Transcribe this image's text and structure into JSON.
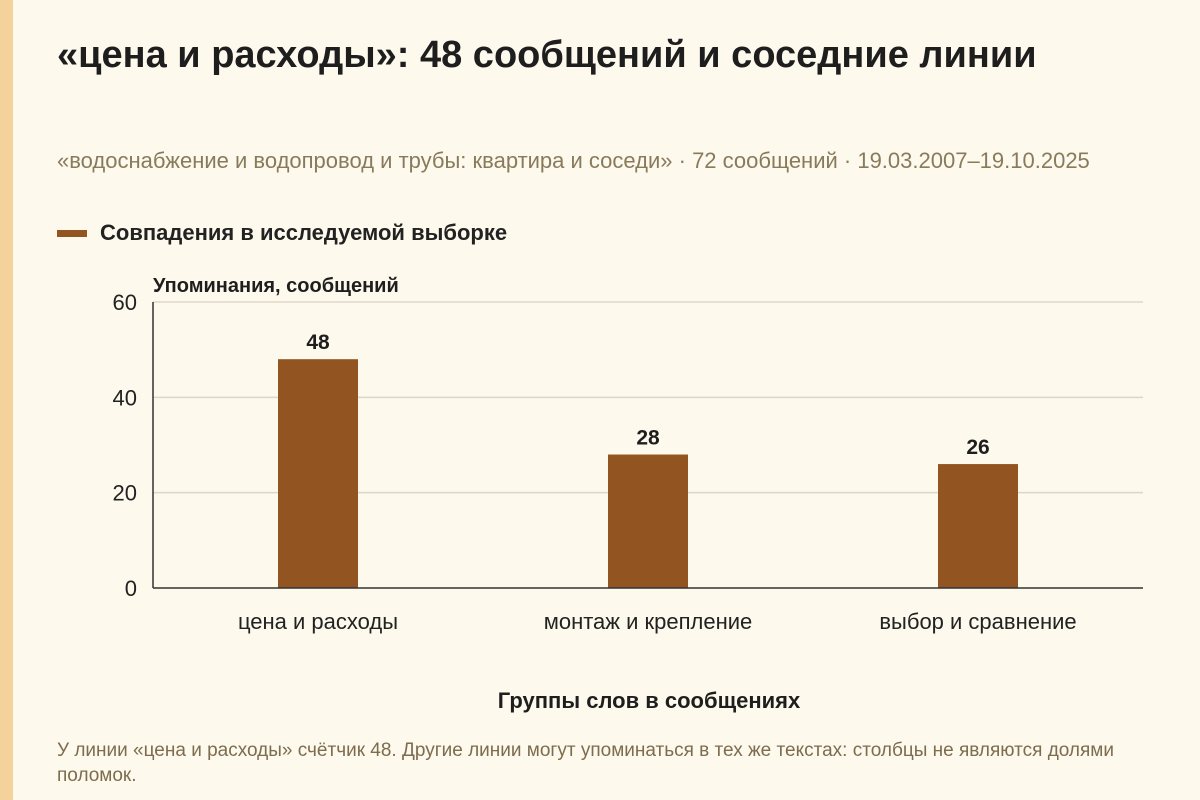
{
  "colors": {
    "background": "#fdf9ec",
    "accent_strip": "#f5d29c",
    "bar": "#925420",
    "grid": "#ddd7c8",
    "axis": "#333333"
  },
  "header": {
    "title": "«цена и расходы»: 48 сообщений и соседние линии",
    "subtitle": "«водоснабжение и водопровод и трубы: квартира и соседи» · 72 сообщений · 19.03.2007–19.10.2025"
  },
  "legend": {
    "label": "Совпадения в исследуемой выборке"
  },
  "footnote": "У линии «цена и расходы» счётчик 48. Другие линии могут упоминаться в тех же текстах: столбцы не являются долями поломок.",
  "chart_data": {
    "type": "bar",
    "categories": [
      "цена и расходы",
      "монтаж и крепление",
      "выбор и сравнение"
    ],
    "series": [
      {
        "name": "Совпадения в исследуемой выборке",
        "values": [
          48,
          28,
          26
        ]
      }
    ],
    "xlabel": "Группы слов в сообщениях",
    "ylabel": "Упоминания, сообщений",
    "ylim": [
      0,
      60
    ],
    "yticks": [
      0,
      20,
      40,
      60
    ],
    "grid": true,
    "legend_position": "top-left",
    "data_labels": true
  }
}
